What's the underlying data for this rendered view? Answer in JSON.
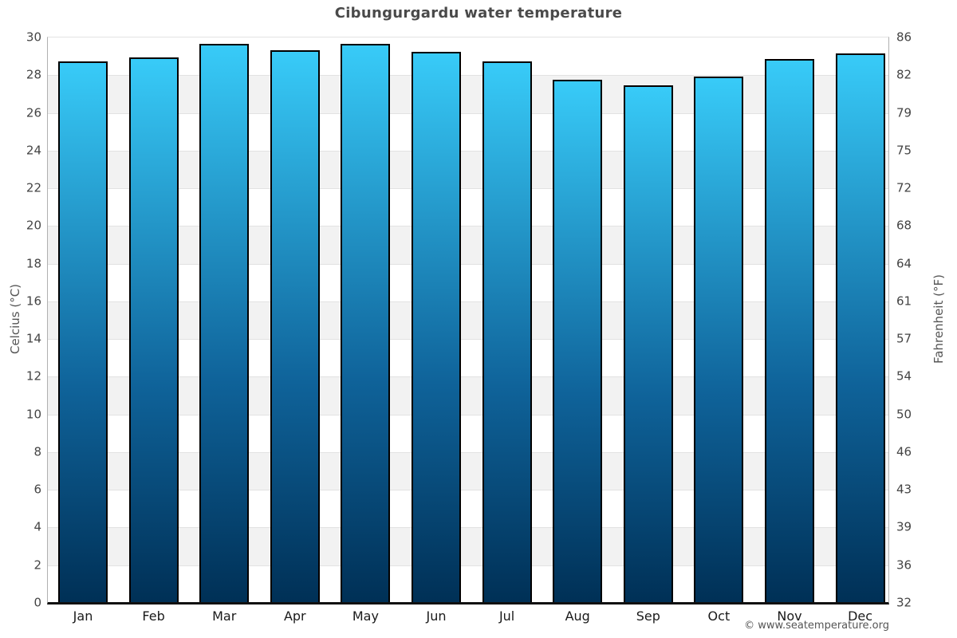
{
  "chart_data": {
    "type": "bar",
    "title": "Cibungurgardu water temperature",
    "categories": [
      "Jan",
      "Feb",
      "Mar",
      "Apr",
      "May",
      "Jun",
      "Jul",
      "Aug",
      "Sep",
      "Oct",
      "Nov",
      "Dec"
    ],
    "values": [
      28.7,
      28.9,
      29.6,
      29.3,
      29.6,
      29.2,
      28.7,
      27.7,
      27.4,
      27.9,
      28.8,
      29.1
    ],
    "ylabel_left": "Celcius (°C)",
    "ylabel_right": "Fahrenheit (°F)",
    "ylim": [
      0,
      30
    ],
    "yticks_celsius": [
      30,
      28,
      26,
      24,
      22,
      20,
      18,
      16,
      14,
      12,
      10,
      8,
      6,
      4,
      2,
      0
    ],
    "yticks_fahrenheit": [
      86,
      82,
      79,
      75,
      72,
      68,
      64,
      61,
      57,
      54,
      50,
      46,
      43,
      39,
      36,
      32
    ],
    "legend": false,
    "grid": "horizontal-bands-every-2C",
    "colors": {
      "bar_gradient_top": "#38cbf8",
      "bar_gradient_bottom": "#003056",
      "bar_border": "#000000",
      "band_gray": "#f2f2f2",
      "gridline": "#e2e2e2",
      "axis_line": "#b0b0b0",
      "baseline": "#111111",
      "title_color": "#4a4a4a",
      "tick_color": "#444444"
    }
  },
  "footer": {
    "copyright": "© www.seatemperature.org"
  }
}
